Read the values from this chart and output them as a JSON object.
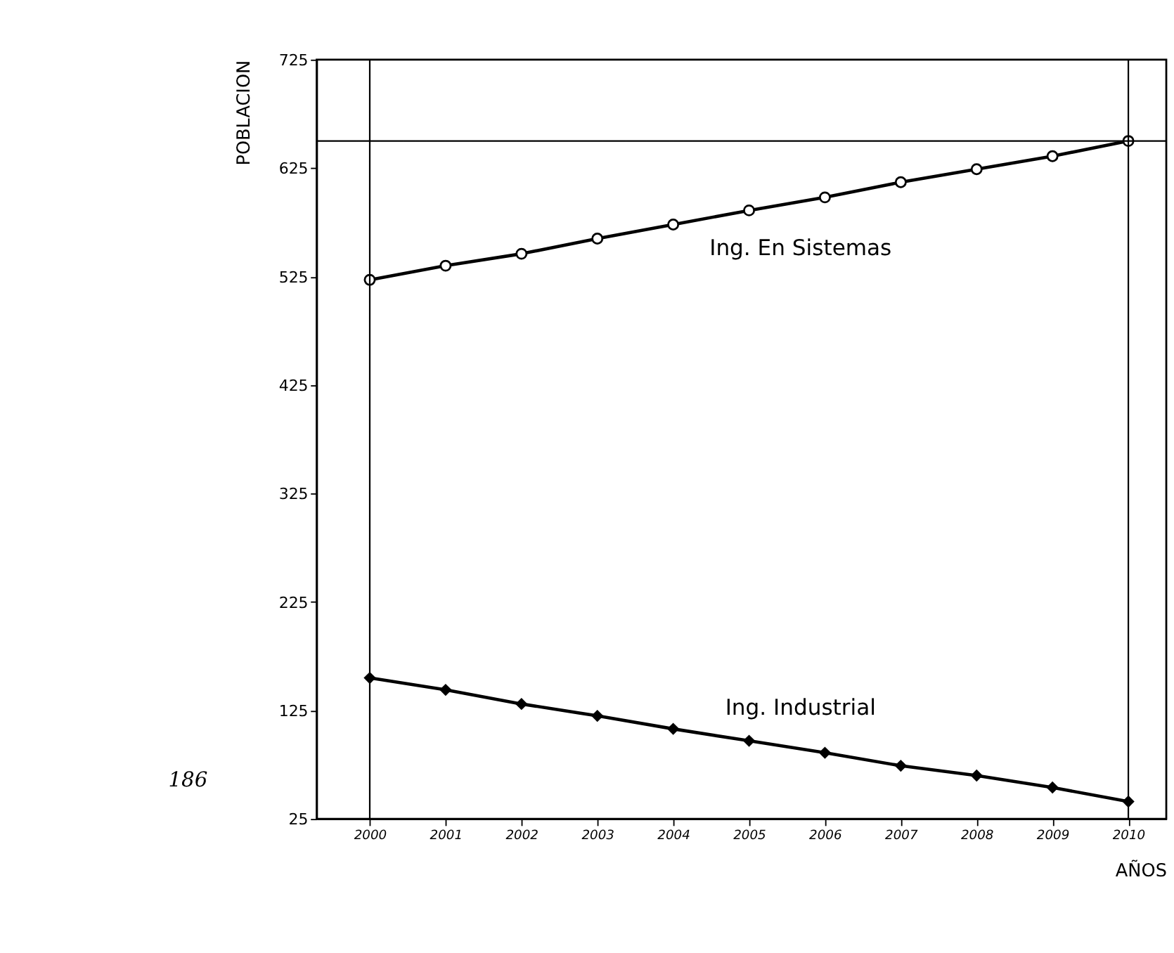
{
  "chart_data": {
    "type": "line",
    "xlabel": "AÑOS",
    "ylabel": "POBLACION",
    "x": [
      2000,
      2001,
      2002,
      2003,
      2004,
      2005,
      2006,
      2007,
      2008,
      2009,
      2010
    ],
    "series": [
      {
        "name": "Ing. En Sistemas",
        "color": "#000000",
        "marker": "circle",
        "values": [
          522,
          535,
          546,
          560,
          573,
          586,
          598,
          612,
          624,
          636,
          650
        ]
      },
      {
        "name": "Ing. Industrial",
        "color": "#000000",
        "marker": "diamond",
        "values": [
          155,
          144,
          131,
          120,
          108,
          97,
          86,
          74,
          65,
          54,
          41
        ]
      }
    ],
    "xlim": [
      1999.3,
      2010.5
    ],
    "xticks": [
      2000,
      2001,
      2002,
      2003,
      2004,
      2005,
      2006,
      2007,
      2008,
      2009,
      2010
    ],
    "ylim": [
      25,
      725
    ],
    "yticks": [
      25,
      125,
      225,
      325,
      425,
      525,
      625,
      725
    ],
    "ref_lines": [
      {
        "axis": "y",
        "value": 650,
        "color": "#000000"
      },
      {
        "axis": "x",
        "value": 2000,
        "color": "#000000"
      },
      {
        "axis": "x",
        "value": 2010,
        "color": "#000000"
      }
    ],
    "annotations": [
      "186"
    ],
    "grid": false,
    "legend": false,
    "line_style": "solid"
  }
}
